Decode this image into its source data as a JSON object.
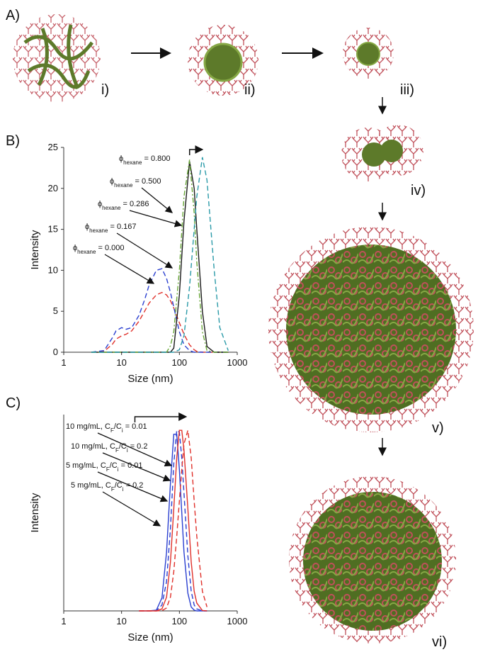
{
  "figure": {
    "panel_labels": [
      "A)",
      "B)",
      "C)"
    ],
    "stage_labels": [
      "i)",
      "ii)",
      "iii)",
      "iv)",
      "v)",
      "vi)"
    ]
  },
  "chart_data": [
    {
      "type": "line",
      "xlabel": "Size (nm)",
      "ylabel": "Intensity",
      "xlog": true,
      "xlim": [
        1,
        1000
      ],
      "xticks": [
        1,
        10,
        100,
        1000
      ],
      "ylim": [
        0,
        25
      ],
      "yticks": [
        0,
        5,
        10,
        15,
        20,
        25
      ],
      "x": [
        3,
        5,
        7,
        8,
        10,
        12,
        15,
        20,
        25,
        30,
        40,
        50,
        60,
        70,
        80,
        100,
        120,
        150,
        180,
        200,
        250,
        300,
        400,
        500,
        700
      ],
      "series": [
        {
          "color": "#e0302a",
          "dash": "dashed",
          "values": [
            0,
            0.1,
            1.0,
            1.6,
            2.0,
            2.2,
            2.6,
            3.8,
            5.0,
            6.0,
            7.0,
            7.3,
            7.0,
            6.3,
            5.4,
            3.6,
            2.2,
            0.9,
            0.3,
            0.1,
            0,
            0,
            0,
            0,
            0
          ]
        },
        {
          "color": "#2a3fd0",
          "dash": "dashed",
          "values": [
            0,
            0.2,
            1.8,
            2.6,
            3.0,
            2.8,
            3.0,
            4.5,
            6.4,
            8.2,
            10.0,
            10.2,
            9.0,
            7.3,
            5.5,
            2.5,
            0.9,
            0.2,
            0,
            0,
            0,
            0,
            0,
            0,
            0
          ]
        },
        {
          "color": "#1a1a1a",
          "dash": "solid",
          "values": [
            0,
            0,
            0,
            0,
            0,
            0,
            0,
            0,
            0,
            0,
            0,
            0,
            0,
            0,
            0.5,
            7,
            16,
            23.3,
            20,
            15,
            5,
            0.7,
            0,
            0,
            0
          ]
        },
        {
          "color": "#6aa83a",
          "dash": "dashdot",
          "values": [
            0,
            0,
            0,
            0,
            0,
            0,
            0,
            0,
            0,
            0,
            0,
            0,
            0,
            0.8,
            2.5,
            10,
            19,
            23.5,
            17,
            11,
            2.5,
            0.2,
            0,
            0,
            0
          ]
        },
        {
          "color": "#2a9aa8",
          "dash": "dashed",
          "values": [
            0,
            0,
            0,
            0,
            0,
            0,
            0,
            0,
            0,
            0,
            0,
            0,
            0,
            0,
            0,
            0.3,
            2,
            8,
            15,
            19,
            23.8,
            21,
            10,
            3,
            0.2
          ]
        }
      ],
      "annotations": [
        [
          {
            "text": "ϕ"
          },
          {
            "text": "hexane",
            "sub": true
          },
          {
            "text": " = 0.800"
          }
        ],
        [
          {
            "text": "ϕ"
          },
          {
            "text": "hexane",
            "sub": true
          },
          {
            "text": " = 0.500"
          }
        ],
        [
          {
            "text": "ϕ"
          },
          {
            "text": "hexane",
            "sub": true
          },
          {
            "text": " = 0.286"
          }
        ],
        [
          {
            "text": "ϕ"
          },
          {
            "text": "hexane",
            "sub": true
          },
          {
            "text": " = 0.167"
          }
        ],
        [
          {
            "text": "ϕ"
          },
          {
            "text": "hexane",
            "sub": true
          },
          {
            "text": " = 0.000"
          }
        ]
      ]
    },
    {
      "type": "line",
      "xlabel": "Size (nm)",
      "ylabel": "Intensity",
      "xlog": true,
      "xlim": [
        1,
        1000
      ],
      "xticks": [
        1,
        10,
        100,
        1000
      ],
      "ylim": [
        0,
        100
      ],
      "x": [
        20,
        30,
        40,
        50,
        60,
        70,
        80,
        90,
        100,
        110,
        120,
        140,
        160,
        180,
        200,
        250,
        300
      ],
      "series": [
        {
          "color": "#2a3fd0",
          "dash": "solid",
          "values": [
            0,
            0,
            0.4,
            6.6,
            30,
            65,
            90,
            90,
            72,
            50,
            30,
            9,
            2,
            0.4,
            0,
            0,
            0
          ]
        },
        {
          "color": "#2a3fd0",
          "dash": "dashed",
          "values": [
            0,
            0,
            0.1,
            3,
            15,
            42,
            75,
            92,
            91,
            78,
            60,
            28,
            10,
            3,
            1,
            0,
            0
          ]
        },
        {
          "color": "#e0302a",
          "dash": "solid",
          "values": [
            0,
            0,
            0,
            1,
            7,
            25,
            52,
            78,
            92,
            92,
            82,
            52,
            25,
            10,
            4,
            0.2,
            0
          ]
        },
        {
          "color": "#e0302a",
          "dash": "dashed",
          "values": [
            0,
            0,
            0,
            0.1,
            1.5,
            7,
            20,
            38,
            56,
            72,
            85,
            92,
            78,
            56,
            38,
            10,
            2
          ]
        }
      ],
      "annotations": [
        [
          {
            "text": "10 mg/mL, C"
          },
          {
            "text": "F",
            "sub": true
          },
          {
            "text": "/C"
          },
          {
            "text": "i",
            "sub": true
          },
          {
            "text": " = 0.01"
          }
        ],
        [
          {
            "text": "10 mg/mL, C"
          },
          {
            "text": "F",
            "sub": true
          },
          {
            "text": "/C"
          },
          {
            "text": "i",
            "sub": true
          },
          {
            "text": " = 0.2"
          }
        ],
        [
          {
            "text": "5 mg/mL, C"
          },
          {
            "text": "F",
            "sub": true
          },
          {
            "text": "/C"
          },
          {
            "text": "i",
            "sub": true
          },
          {
            "text": " = 0.01"
          }
        ],
        [
          {
            "text": "5 mg/mL, C"
          },
          {
            "text": "F",
            "sub": true
          },
          {
            "text": "/C"
          },
          {
            "text": "i",
            "sub": true
          },
          {
            "text": " = 0.2"
          }
        ]
      ]
    }
  ]
}
